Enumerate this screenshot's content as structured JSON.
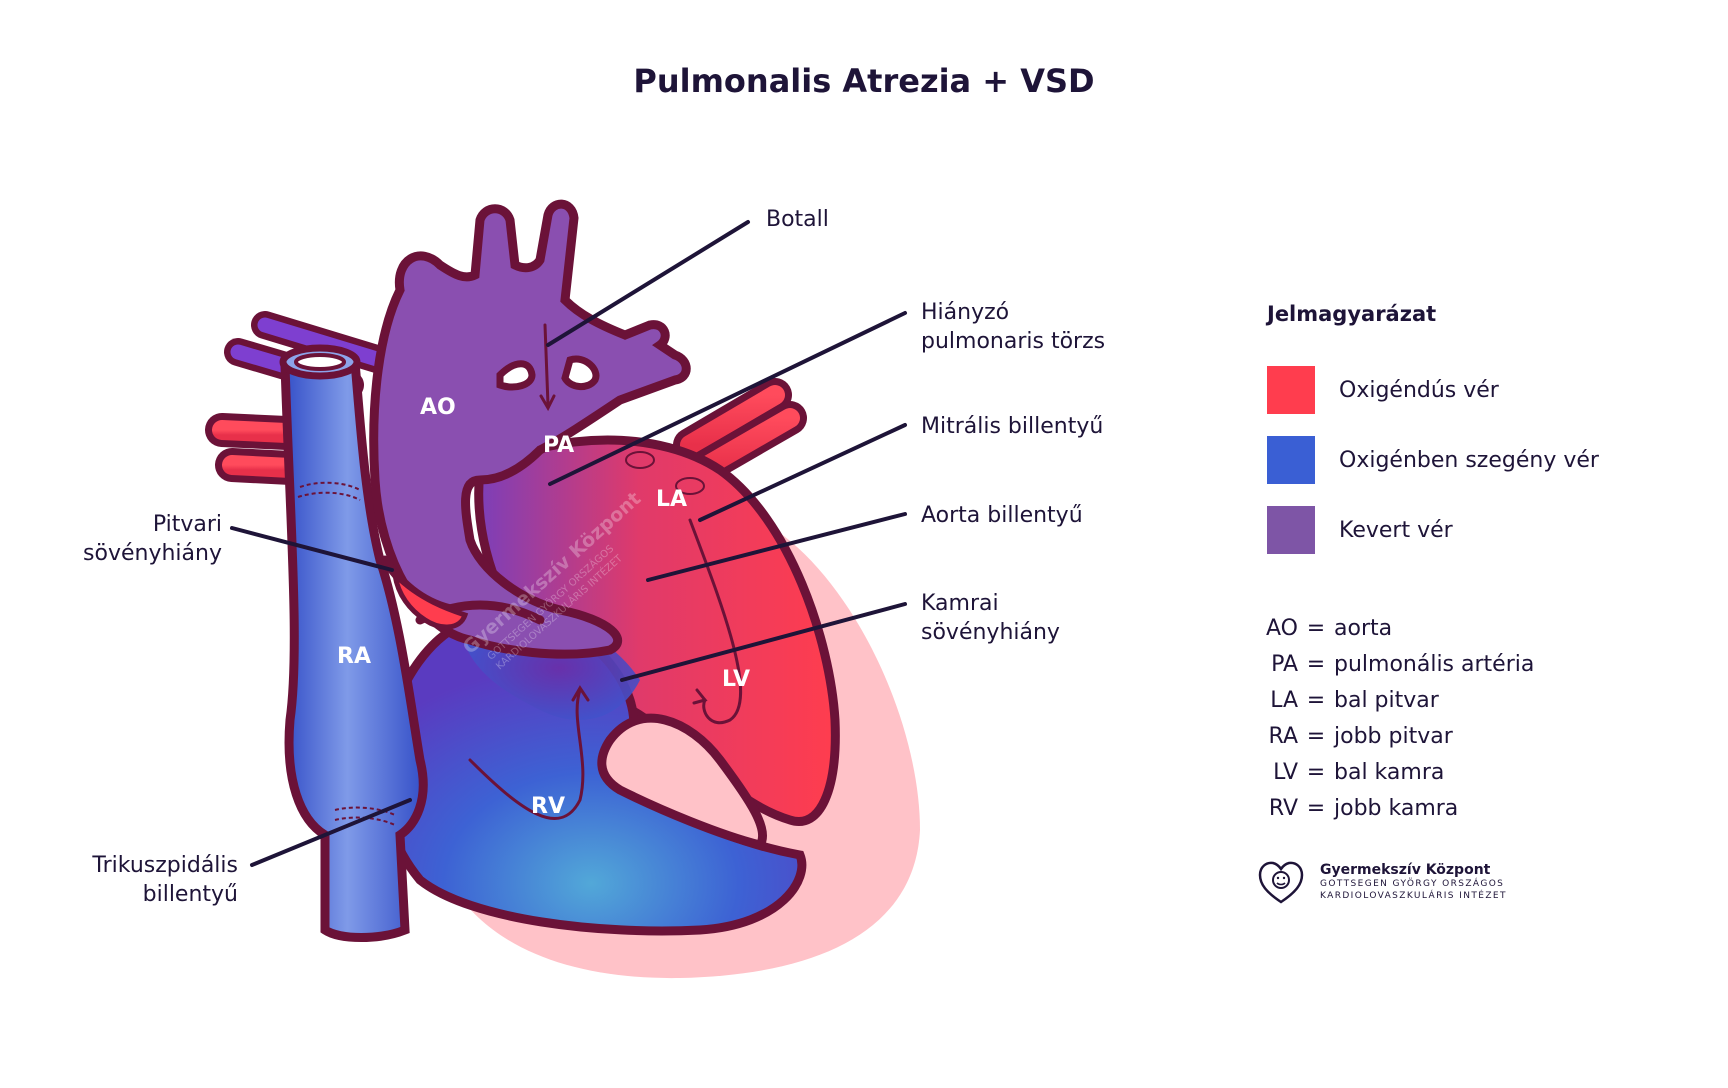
{
  "title": "Pulmonalis Atrezia +  VSD",
  "regions": {
    "ao": "AO",
    "pa": "PA",
    "la": "LA",
    "ra": "RA",
    "lv": "LV",
    "rv": "RV"
  },
  "labels": {
    "botall": "Botall",
    "hianyzo_1": "Hiányzó",
    "hianyzo_2": "pulmonaris törzs",
    "mitralis": "Mitrális billentyű",
    "aorta_billentyu": "Aorta billentyű",
    "kamrai_1": "Kamrai",
    "kamrai_2": "sövényhiány",
    "pitvari_1": "Pitvari",
    "pitvari_2": "sövényhiány",
    "trikuszpidalis_1": "Trikuszpidális",
    "trikuszpidalis_2": "billentyű"
  },
  "legend": {
    "title": "Jelmagyarázat",
    "items": [
      {
        "label": "Oxigéndús vér",
        "color": "#ff3d4e"
      },
      {
        "label": "Oxigénben szegény vér",
        "color": "#3a5fd4"
      },
      {
        "label": "Kevert vér",
        "color": "#7e55a6"
      }
    ]
  },
  "abbreviations": [
    {
      "key": "AO",
      "eq": "=",
      "value": "aorta"
    },
    {
      "key": "PA",
      "eq": "=",
      "value": "pulmonális artéria"
    },
    {
      "key": "LA",
      "eq": "=",
      "value": "bal pitvar"
    },
    {
      "key": "RA",
      "eq": "=",
      "value": "jobb pitvar"
    },
    {
      "key": "LV",
      "eq": "=",
      "value": "bal kamra"
    },
    {
      "key": "RV",
      "eq": "=",
      "value": "jobb kamra"
    }
  ],
  "logo": {
    "name": "Gyermekszív Központ",
    "sub1": "GOTTSEGEN GYÖRGY ORSZÁGOS",
    "sub2": "KARDIOLOVASZKULÁRIS INTÉZET"
  },
  "watermark": {
    "name": "Gyermekszív Központ",
    "sub1": "GOTTSEGEN GYÖRGY ORSZÁGOS",
    "sub2": "KARDIOLOVASZKULÁRIS INTÉZET"
  },
  "colors": {
    "outline": "#6b1238",
    "oxygenated": "#ff3d4e",
    "deoxygenated": "#3a5fd4",
    "mixed": "#8a4fb0",
    "pericardium": "#ffc2c8",
    "text": "#1e1438"
  }
}
